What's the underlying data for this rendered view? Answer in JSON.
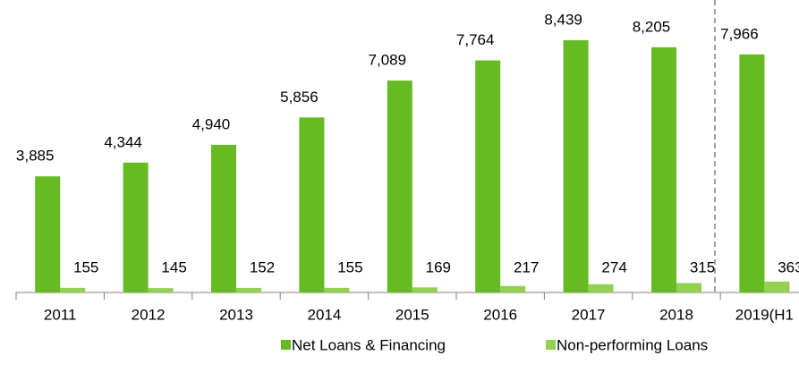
{
  "chart_data": {
    "type": "bar",
    "categories": [
      "2011",
      "2012",
      "2013",
      "2014",
      "2015",
      "2016",
      "2017",
      "2018",
      "2019(H1"
    ],
    "series": [
      {
        "name": "Net Loans & Financing",
        "color": "#66bb22",
        "values": [
          3885,
          4344,
          4940,
          5856,
          7089,
          7764,
          8439,
          8205,
          7966
        ],
        "value_labels": [
          "3,885",
          "4,344",
          "4,940",
          "5,856",
          "7,089",
          "7,764",
          "8,439",
          "8,205",
          "7,966"
        ]
      },
      {
        "name": "Non-performing Loans",
        "color": "#92d050",
        "values": [
          155,
          145,
          152,
          155,
          169,
          217,
          274,
          315,
          363
        ]
      }
    ]
  }
}
